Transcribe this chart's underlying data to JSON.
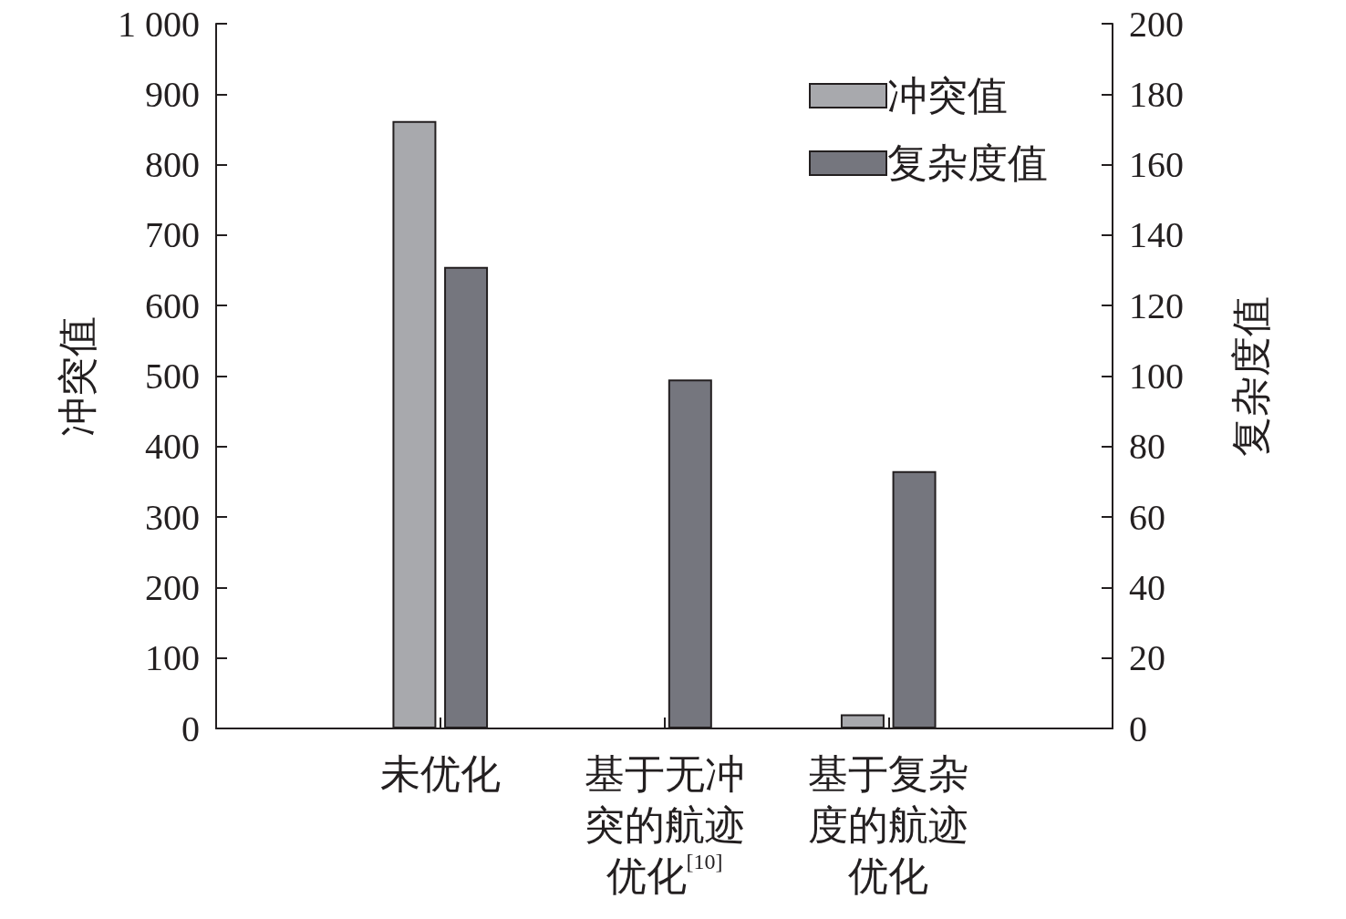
{
  "chart_data": {
    "type": "bar",
    "categories": [
      null,
      "未优化",
      "基于无冲突的航迹优化$^{[10]}$",
      "基于复杂度的航迹优化",
      null
    ],
    "series": [
      {
        "name": "冲突值",
        "color": "#a8a9ad",
        "values": [
          null,
          862,
          null,
          20,
          null
        ]
      },
      {
        "name": "复杂度值",
        "color": "#75767e",
        "axis": "y2",
        "values": [
          null,
          131,
          99,
          73,
          null
        ]
      }
    ],
    "ylabel": "冲突值",
    "y2label": "复杂度值",
    "ylim": [
      0,
      1000
    ],
    "yticks": [
      0,
      100,
      200,
      300,
      400,
      500,
      600,
      700,
      800,
      900,
      {
        "value": 1000,
        "label": "1 000"
      }
    ],
    "y2lim": [
      0,
      200
    ],
    "y2ticks": [
      0,
      20,
      40,
      60,
      80,
      100,
      120,
      140,
      160,
      180,
      200
    ],
    "grid": false,
    "legend": "top right"
  }
}
